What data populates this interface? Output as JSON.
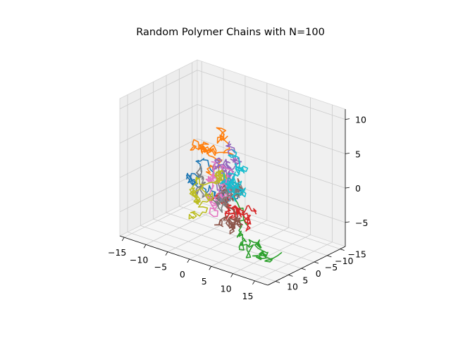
{
  "chart_data": {
    "type": "line3d",
    "title": "Random Polymer Chains with N=100",
    "xlabel": "",
    "ylabel": "",
    "zlabel": "",
    "xlim": [
      -16,
      18
    ],
    "ylim": [
      -17,
      13
    ],
    "zlim": [
      -8.5,
      11.5
    ],
    "xticks": [
      -15,
      -10,
      -5,
      0,
      5,
      10,
      15
    ],
    "yticks": [
      -15,
      -10,
      -5,
      0,
      5,
      10
    ],
    "zticks": [
      -5,
      0,
      5,
      10
    ],
    "grid": true,
    "legend": "none",
    "num_chains": 10,
    "steps_per_chain": 100,
    "series_colors": [
      "#1f77b4",
      "#ff7f0e",
      "#2ca02c",
      "#d62728",
      "#9467bd",
      "#8c564b",
      "#e377c2",
      "#7f7f7f",
      "#bcbd22",
      "#17becf"
    ]
  }
}
